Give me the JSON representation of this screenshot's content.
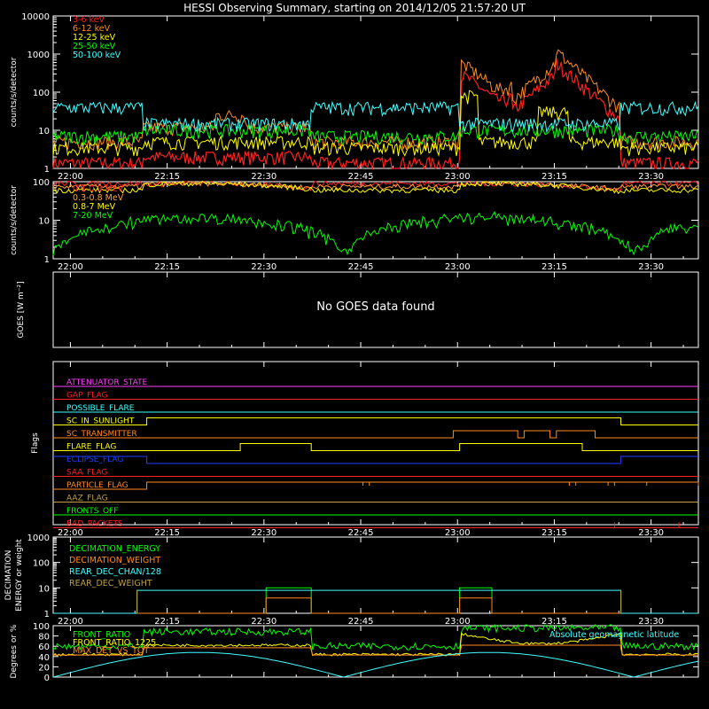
{
  "chart_data": {
    "title": "HESSI Observing Summary, starting on 2014/12/05 21:57:20 UT",
    "time_ticks": [
      "22:00",
      "22:15",
      "22:30",
      "22:45",
      "23:00",
      "23:15",
      "23:30"
    ],
    "panels": [
      {
        "id": "xray",
        "type": "line",
        "ylabel": "counts/s/detector",
        "yscale": "log",
        "ylim": [
          1,
          10000
        ],
        "yticks": [
          "1",
          "10",
          "100",
          "1000",
          "10000"
        ],
        "series": [
          {
            "name": "3-6 keV",
            "color": "#ff2020",
            "levels": {
              "day": 2,
              "night": 1,
              "flare_peak": 500
            }
          },
          {
            "name": "6-12 keV",
            "color": "#ff8a20",
            "levels": {
              "day": 12,
              "night": 4,
              "flare_peak": 1200
            }
          },
          {
            "name": "12-25 keV",
            "color": "#ffff00",
            "levels": {
              "day": 5,
              "night": 3,
              "flare_peak": 30
            }
          },
          {
            "name": "25-50 keV",
            "color": "#00ff00",
            "levels": {
              "day": 10,
              "night": 6,
              "flare_peak": 20
            }
          },
          {
            "name": "50-100 keV",
            "color": "#40ffff",
            "levels": {
              "day": 15,
              "night": 40,
              "flare_peak": 15
            }
          }
        ]
      },
      {
        "id": "gamma",
        "type": "line",
        "ylabel": "counts/s/detector",
        "yscale": "log",
        "ylim": [
          1,
          100
        ],
        "yticks": [
          "1",
          "10",
          "100"
        ],
        "series": [
          {
            "name": "0.1-0.3 MeV",
            "color": "#ff2020"
          },
          {
            "name": "0.3-0.8 MeV",
            "color": "#ffa040"
          },
          {
            "name": "0.8-7 MeV",
            "color": "#ffff00"
          },
          {
            "name": "7-20 MeV",
            "color": "#00ff00"
          }
        ]
      },
      {
        "id": "goes",
        "ylabel": "GOES [W m⁻²]",
        "message": "No GOES data found"
      },
      {
        "id": "flags",
        "ylabel": "Flags",
        "flags": [
          {
            "name": "ATTENUATOR_STATE",
            "color": "#ff40ff"
          },
          {
            "name": "GAP_FLAG",
            "color": "#ff2020"
          },
          {
            "name": "POSSIBLE_FLARE",
            "color": "#40ffff"
          },
          {
            "name": "SC_IN_SUNLIGHT",
            "color": "#ffff00"
          },
          {
            "name": "SC_TRANSMITTER",
            "color": "#ff8a20"
          },
          {
            "name": "FLARE_FLAG",
            "color": "#ffff00"
          },
          {
            "name": "ECLIPSE_FLAG",
            "color": "#2040ff"
          },
          {
            "name": "SAA_FLAG",
            "color": "#ff2020"
          },
          {
            "name": "PARTICLE_FLAG",
            "color": "#ff8a20"
          },
          {
            "name": "AAZ_FLAG",
            "color": "#c0a040"
          },
          {
            "name": "FRONTS_OFF",
            "color": "#00ff00"
          },
          {
            "name": "BAD_PACKETS",
            "color": "#ff2020"
          }
        ]
      },
      {
        "id": "decimation",
        "ylabel": "DECIMATION ENERGY or weight",
        "yscale": "log",
        "ylim": [
          1,
          1000
        ],
        "yticks": [
          "1",
          "10",
          "100",
          "1000"
        ],
        "series": [
          {
            "name": "DECIMATION_ENERGY",
            "color": "#00ff00"
          },
          {
            "name": "DECIMATION_WEIGHT",
            "color": "#ff8a20"
          },
          {
            "name": "REAR_DEC_CHAN/128",
            "color": "#40ffff"
          },
          {
            "name": "REAR_DEC_WEIGHT",
            "color": "#c0a040"
          }
        ]
      },
      {
        "id": "ratio",
        "ylabel": "Degrees or %",
        "ylim": [
          0,
          100
        ],
        "yticks": [
          "0",
          "20",
          "40",
          "60",
          "80",
          "100"
        ],
        "series": [
          {
            "name": "FRONT_RATIO",
            "color": "#00ff00"
          },
          {
            "name": "FRONT_RATIO_1225",
            "color": "#ffff00"
          },
          {
            "name": "MAX_DET_VS_TOT",
            "color": "#ff8a20"
          },
          {
            "name": "Absolute geomagnetic latitude",
            "color": "#40ffff"
          }
        ]
      }
    ]
  }
}
